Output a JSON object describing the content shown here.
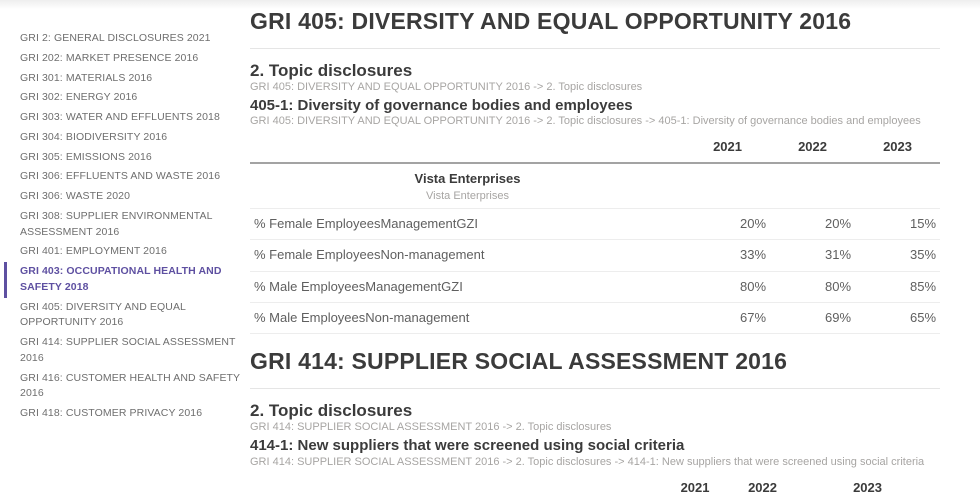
{
  "theme": {
    "accent": "#5e50a1"
  },
  "sidebar": {
    "items": [
      {
        "label": "GRI 2: GENERAL DISCLOSURES 2021",
        "active": false
      },
      {
        "label": "GRI 202: MARKET PRESENCE 2016",
        "active": false
      },
      {
        "label": "GRI 301: MATERIALS 2016",
        "active": false
      },
      {
        "label": "GRI 302: ENERGY 2016",
        "active": false
      },
      {
        "label": "GRI 303: WATER AND EFFLUENTS 2018",
        "active": false
      },
      {
        "label": "GRI 304: BIODIVERSITY 2016",
        "active": false
      },
      {
        "label": "GRI 305: EMISSIONS 2016",
        "active": false
      },
      {
        "label": "GRI 306: EFFLUENTS AND WASTE 2016",
        "active": false
      },
      {
        "label": "GRI 306: WASTE 2020",
        "active": false
      },
      {
        "label": "GRI 308: SUPPLIER ENVIRONMENTAL ASSESSMENT 2016",
        "active": false
      },
      {
        "label": "GRI 401: EMPLOYMENT 2016",
        "active": false
      },
      {
        "label": "GRI 403: OCCUPATIONAL HEALTH AND SAFETY 2018",
        "active": true
      },
      {
        "label": "GRI 405: DIVERSITY AND EQUAL OPPORTUNITY 2016",
        "active": false
      },
      {
        "label": "GRI 414: SUPPLIER SOCIAL ASSESSMENT 2016",
        "active": false
      },
      {
        "label": "GRI 416: CUSTOMER HEALTH AND SAFETY 2016",
        "active": false
      },
      {
        "label": "GRI 418: CUSTOMER PRIVACY 2016",
        "active": false
      }
    ]
  },
  "sections": [
    {
      "title": "GRI 405: DIVERSITY AND EQUAL OPPORTUNITY 2016",
      "subsection_title": "2. Topic disclosures",
      "subsection_breadcrumb": "GRI 405: DIVERSITY AND EQUAL OPPORTUNITY 2016 -> 2. Topic disclosures",
      "disclosure_title": "405-1: Diversity of governance bodies and employees",
      "disclosure_breadcrumb": "GRI 405: DIVERSITY AND EQUAL OPPORTUNITY 2016 -> 2. Topic disclosures -> 405-1: Diversity of governance bodies and employees",
      "table": {
        "years": [
          "2021",
          "2022",
          "2023"
        ],
        "group": {
          "name": "Vista Enterprises",
          "subtitle": "Vista Enterprises"
        },
        "rows": [
          {
            "label": "% Female EmployeesManagementGZI",
            "values": [
              "20%",
              "20%",
              "15%"
            ]
          },
          {
            "label": "% Female EmployeesNon-management",
            "values": [
              "33%",
              "31%",
              "35%"
            ]
          },
          {
            "label": "% Male EmployeesManagementGZI",
            "values": [
              "80%",
              "80%",
              "85%"
            ]
          },
          {
            "label": "% Male EmployeesNon-management",
            "values": [
              "67%",
              "69%",
              "65%"
            ]
          }
        ]
      }
    },
    {
      "title": "GRI 414: SUPPLIER SOCIAL ASSESSMENT 2016",
      "subsection_title": "2. Topic disclosures",
      "subsection_breadcrumb": "GRI 414: SUPPLIER SOCIAL ASSESSMENT 2016 -> 2. Topic disclosures",
      "disclosure_title": "414-1: New suppliers that were screened using social criteria",
      "disclosure_breadcrumb": "GRI 414: SUPPLIER SOCIAL ASSESSMENT 2016 -> 2. Topic disclosures -> 414-1: New suppliers that were screened using social criteria",
      "table": {
        "years": [
          "2021",
          "2022",
          "2023"
        ],
        "rows": []
      }
    }
  ]
}
